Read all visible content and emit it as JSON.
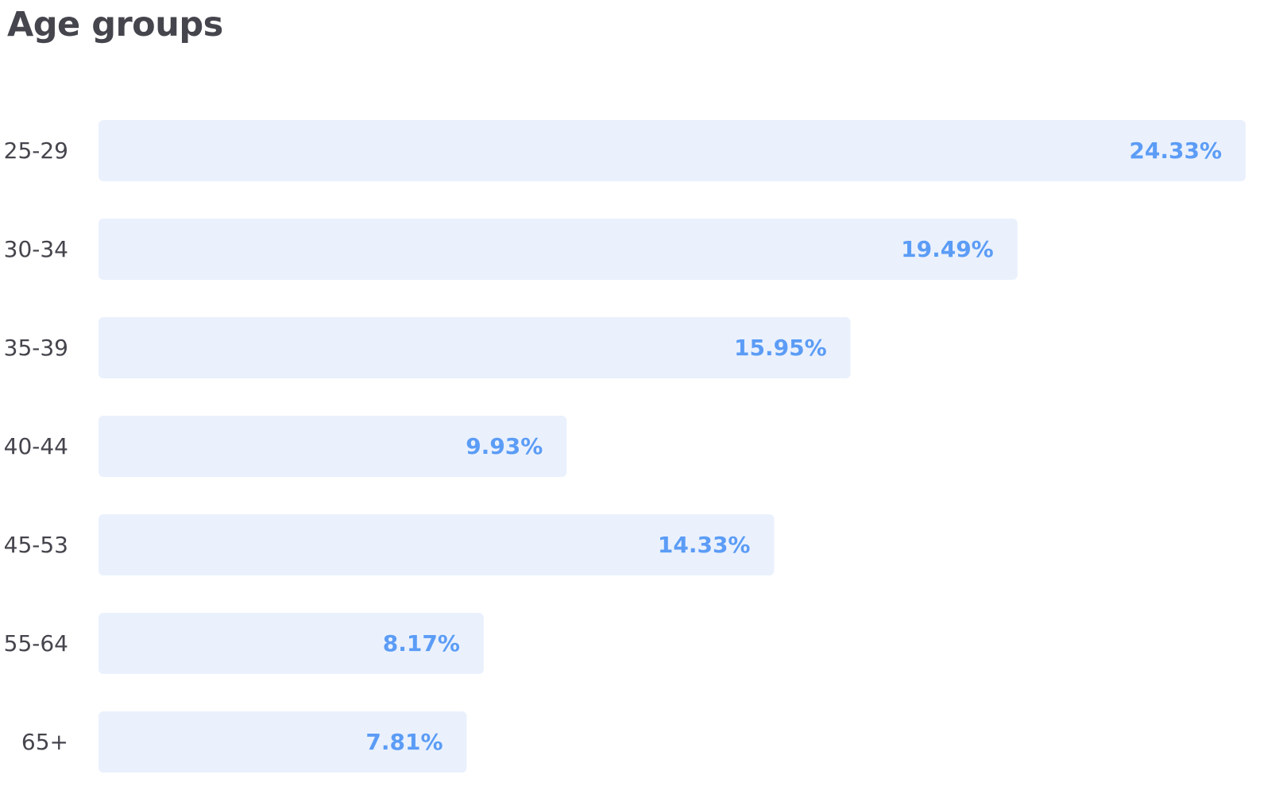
{
  "header": {
    "title": "Age groups"
  },
  "colors": {
    "bar_fill": "#eaf1fd",
    "value_label": "#5b9cf6",
    "text": "#45454d"
  },
  "chart_data": {
    "type": "bar",
    "orientation": "horizontal",
    "title": "Age groups",
    "xlabel": "",
    "ylabel": "",
    "unit": "%",
    "grid": false,
    "legend": "none",
    "xlim": [
      0,
      24.33
    ],
    "categories": [
      "25-29",
      "30-34",
      "35-39",
      "40-44",
      "45-53",
      "55-64",
      "65+"
    ],
    "values": [
      24.33,
      19.49,
      15.95,
      9.93,
      14.33,
      8.17,
      7.81
    ],
    "value_labels": [
      "24.33%",
      "19.49%",
      "15.95%",
      "9.93%",
      "14.33%",
      "8.17%",
      "7.81%"
    ]
  }
}
